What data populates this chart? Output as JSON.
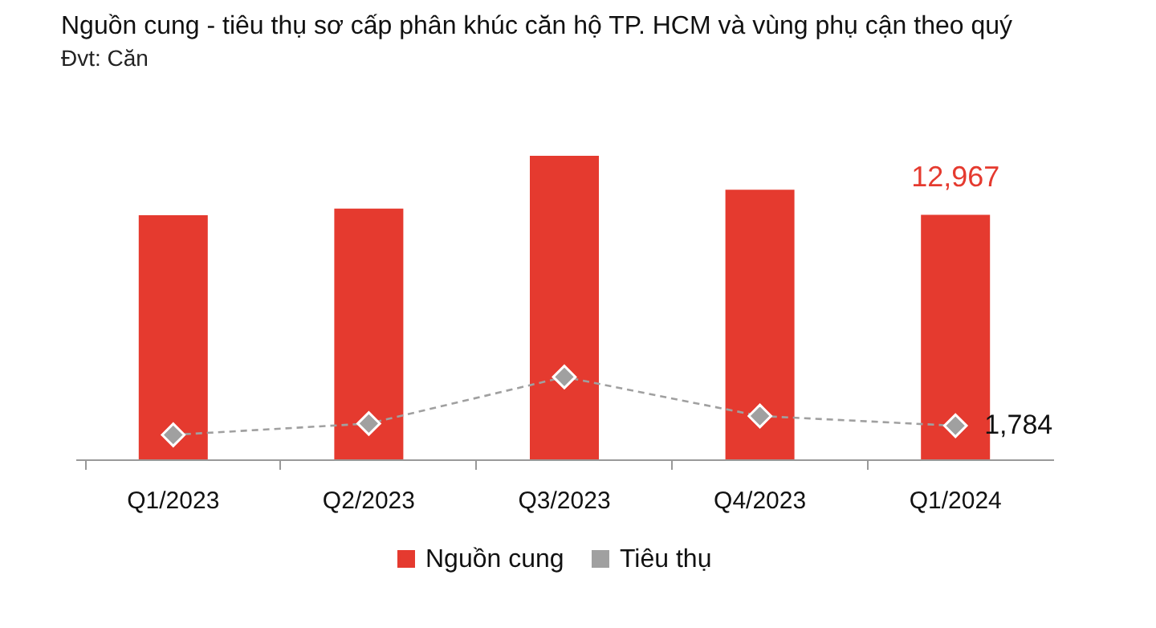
{
  "chart_data": {
    "type": "bar",
    "title": "Nguồn cung - tiêu thụ sơ cấp phân khúc căn hộ TP. HCM và vùng phụ cận theo quý",
    "subtitle": "Đvt: Căn",
    "categories": [
      "Q1/2023",
      "Q2/2023",
      "Q3/2023",
      "Q4/2023",
      "Q1/2024"
    ],
    "tick_labels": "x",
    "legend": "bottom",
    "grid": false,
    "series": [
      {
        "name": "Nguồn cung",
        "color": "#e53a2f",
        "values": [
          12950,
          13300,
          16100,
          14300,
          12967
        ],
        "value_labels": [
          null,
          null,
          null,
          null,
          "12,967"
        ]
      },
      {
        "name": "Tiêu thụ",
        "type": "line",
        "color": "#a0a0a0",
        "marker": "diamond",
        "line_style": "dashed",
        "values": [
          1300,
          1900,
          4370,
          2300,
          1784
        ],
        "value_labels": [
          null,
          null,
          null,
          null,
          "1,784"
        ]
      }
    ]
  }
}
